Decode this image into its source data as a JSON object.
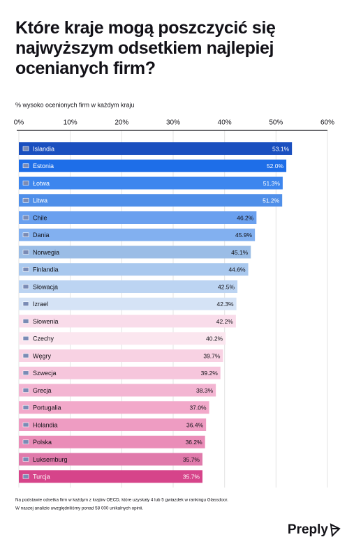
{
  "chart_data": {
    "type": "bar",
    "orientation": "horizontal",
    "title": "Które kraje mogą poszczycić się najwyższym odsetkiem najlepiej ocenianych firm?",
    "subtitle": "% wysoko ocenionych firm w każdym kraju",
    "categories": [
      "Islandia",
      "Estonia",
      "Łotwa",
      "Litwa",
      "Chile",
      "Dania",
      "Norwegia",
      "Finlandia",
      "Słowacja",
      "Izrael",
      "Słowenia",
      "Czechy",
      "Węgry",
      "Szwecja",
      "Grecja",
      "Portugalia",
      "Holandia",
      "Polska",
      "Luksemburg",
      "Turcja"
    ],
    "values": [
      53.1,
      52.0,
      51.3,
      51.2,
      46.2,
      45.9,
      45.1,
      44.6,
      42.5,
      42.3,
      42.2,
      40.2,
      39.7,
      39.2,
      38.3,
      37.0,
      36.4,
      36.2,
      35.7,
      35.7
    ],
    "value_labels": [
      "53.1%",
      "52.0%",
      "51.3%",
      "51.2%",
      "46.2%",
      "45.9%",
      "45.1%",
      "44.6%",
      "42.5%",
      "42.3%",
      "42.2%",
      "40.2%",
      "39.7%",
      "39.2%",
      "38.3%",
      "37.0%",
      "36.4%",
      "36.2%",
      "35.7%",
      "35.7%"
    ],
    "colors": [
      "#1a4fbf",
      "#1e6ee8",
      "#3d86ee",
      "#4f8fe9",
      "#6aa0ef",
      "#82b0f0",
      "#9bbde6",
      "#a9c8ee",
      "#bcd4f2",
      "#d5e3f6",
      "#f9dcea",
      "#fbe6ef",
      "#f8d2e3",
      "#f6c6dc",
      "#f3b5d2",
      "#f2a9ca",
      "#ee9cc2",
      "#ea8db8",
      "#e07aab",
      "#d6448a"
    ],
    "xlim": [
      0,
      60
    ],
    "xticks": [
      {
        "value": 0,
        "label": "0%"
      },
      {
        "value": 10,
        "label": "10%"
      },
      {
        "value": 20,
        "label": "20%"
      },
      {
        "value": 30,
        "label": "30%"
      },
      {
        "value": 40,
        "label": "40%"
      },
      {
        "value": 50,
        "label": "50%"
      },
      {
        "value": 60,
        "label": "60%"
      }
    ],
    "grid": true,
    "notes": [
      "Na podstawie odsetka firm w każdym z krajów OECD, które uzyskały 4 lub 5 gwiazdek w rankingu Glassdoor.",
      "W naszej analizie uwzględniliśmy ponad 58 000 unikalnych opinii."
    ],
    "brand": "Preply"
  }
}
